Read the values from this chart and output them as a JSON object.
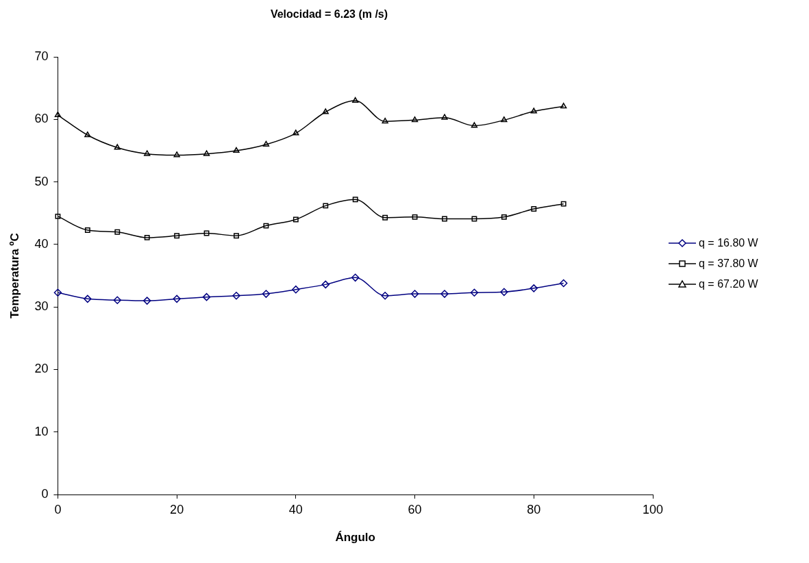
{
  "chart_data": {
    "type": "line",
    "title": "Velocidad = 6.23 (m /s)",
    "xlabel": "Ángulo",
    "ylabel": "Temperatura ºC",
    "x": [
      0,
      5,
      10,
      15,
      20,
      25,
      30,
      35,
      40,
      45,
      50,
      55,
      60,
      65,
      70,
      75,
      80,
      85
    ],
    "xlim": [
      0,
      100
    ],
    "xticks": [
      0,
      20,
      40,
      60,
      80,
      100
    ],
    "ylim": [
      0,
      70
    ],
    "yticks": [
      0,
      10,
      20,
      30,
      40,
      50,
      60,
      70
    ],
    "grid": false,
    "legend": "right",
    "series": [
      {
        "name": "q = 16.80 W",
        "color": "#000080",
        "marker": "diamond",
        "values": [
          32.3,
          31.3,
          31.1,
          31.0,
          31.3,
          31.6,
          31.8,
          32.1,
          32.8,
          33.6,
          34.7,
          31.8,
          32.1,
          32.1,
          32.3,
          32.4,
          33.0,
          33.8
        ]
      },
      {
        "name": "q = 37.80 W",
        "color": "#000000",
        "marker": "square",
        "values": [
          44.5,
          42.3,
          42.0,
          41.1,
          41.4,
          41.8,
          41.4,
          43.0,
          44.0,
          46.2,
          47.2,
          44.3,
          44.4,
          44.1,
          44.1,
          44.4,
          45.7,
          46.5
        ]
      },
      {
        "name": "q = 67.20 W",
        "color": "#000000",
        "marker": "triangle",
        "values": [
          60.7,
          57.5,
          55.5,
          54.5,
          54.3,
          54.5,
          55.0,
          56.0,
          57.8,
          61.2,
          63.0,
          59.7,
          59.9,
          60.3,
          59.0,
          59.9,
          61.3,
          62.1
        ]
      }
    ]
  }
}
